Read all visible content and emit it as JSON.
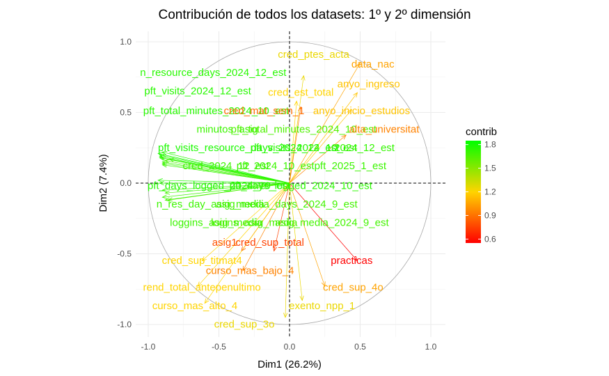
{
  "chart_data": {
    "type": "pca-variable-correlation-circle",
    "title": "Contribución de todos los datasets: 1º y 2º dimensión",
    "xlabel": "Dim1 (26.2%)",
    "ylabel": "Dim2 (7.4%)",
    "xlim": [
      -1.05,
      1.05
    ],
    "ylim": [
      -1.07,
      1.07
    ],
    "x_ticks": [
      "-1.0",
      "-0.5",
      "0.0",
      "0.5",
      "1.0"
    ],
    "y_ticks": [
      "-1.0",
      "-0.5",
      "0.0",
      "0.5",
      "1.0"
    ],
    "grid": true,
    "unit_circle": true,
    "reference_lines": "dashed at x=0 and y=0",
    "color_scale": {
      "title": "contrib",
      "min": 0.55,
      "max": 1.85,
      "colors": [
        "#ff0000",
        "#ffd400",
        "#00ff00"
      ],
      "ticks": [
        "1.8",
        "1.5",
        "1.2",
        "0.9",
        "0.6"
      ],
      "tick_values": [
        1.8,
        1.5,
        1.2,
        0.9,
        0.6
      ],
      "legend_position": "right"
    },
    "variables": [
      {
        "label": "cred_ptes_acta",
        "x": 0.1,
        "y": 0.76,
        "contrib": 1.25,
        "lx": 0.17,
        "ly": 0.91
      },
      {
        "label": "data_nac",
        "x": 0.5,
        "y": 0.85,
        "contrib": 1.05,
        "lx": 0.59,
        "ly": 0.84
      },
      {
        "label": "n_resource_days_2024_12_est",
        "x": -0.9,
        "y": 0.22,
        "contrib": 1.75,
        "lx": -0.54,
        "ly": 0.78
      },
      {
        "label": "anyo_ingreso",
        "x": 0.48,
        "y": 0.64,
        "contrib": 1.15,
        "lx": 0.56,
        "ly": 0.7
      },
      {
        "label": "pft_visits_2024_12_est",
        "x": -0.92,
        "y": 0.2,
        "contrib": 1.75,
        "lx": -0.65,
        "ly": 0.65
      },
      {
        "label": "cred_est_total",
        "x": 0.05,
        "y": 0.58,
        "contrib": 1.2,
        "lx": 0.08,
        "ly": 0.64
      },
      {
        "label": "pft_total_minutes_2024_10_est",
        "x": -0.92,
        "y": 0.18,
        "contrib": 1.75,
        "lx": -0.52,
        "ly": 0.51
      },
      {
        "label": "cred_mat_sem_1",
        "x": 0.08,
        "y": 0.54,
        "contrib": 0.88,
        "lx": -0.18,
        "ly": 0.51
      },
      {
        "label": "anyo_inicio_estudios",
        "x": 0.44,
        "y": 0.52,
        "contrib": 1.15,
        "lx": 0.51,
        "ly": 0.51
      },
      {
        "label": "minutos_asig",
        "x": -0.85,
        "y": 0.17,
        "contrib": 1.7,
        "lx": -0.44,
        "ly": 0.38
      },
      {
        "label": "pft_total_minutes_2024_10_est",
        "x": -0.88,
        "y": 0.16,
        "contrib": 1.65,
        "lx": 0.1,
        "ly": 0.38
      },
      {
        "label": "alta_universitat",
        "x": 0.4,
        "y": 0.34,
        "contrib": 0.95,
        "lx": 0.67,
        "ly": 0.38
      },
      {
        "label": "pft_visits_resource_days_2024_12_est",
        "x": -0.93,
        "y": 0.21,
        "contrib": 1.78,
        "lx": -0.29,
        "ly": 0.25
      },
      {
        "label": "pft_visits_2024_10_est",
        "x": -0.92,
        "y": 0.19,
        "contrib": 1.75,
        "lx": 0.1,
        "ly": 0.25
      },
      {
        "label": "2024_12_est",
        "x": -0.91,
        "y": 0.18,
        "contrib": 1.72,
        "lx": 0.53,
        "ly": 0.25
      },
      {
        "label": "cred_2024_12_est",
        "x": -0.9,
        "y": 0.15,
        "contrib": 1.7,
        "lx": -0.45,
        "ly": 0.12
      },
      {
        "label": "pft_2024_10_est",
        "x": -0.9,
        "y": 0.14,
        "contrib": 1.7,
        "lx": -0.1,
        "ly": 0.12
      },
      {
        "label": "pft_2025_1_est",
        "x": -0.9,
        "y": 0.13,
        "contrib": 1.7,
        "lx": 0.43,
        "ly": 0.12
      },
      {
        "label": "pft_days_logged_2024_10_est",
        "x": -0.93,
        "y": 0.02,
        "contrib": 1.76,
        "lx": -0.5,
        "ly": -0.02
      },
      {
        "label": "pft_days_logged_2024_10_est",
        "x": -0.92,
        "y": 0.0,
        "contrib": 1.74,
        "lx": 0.08,
        "ly": -0.02
      },
      {
        "label": "n_res_day_asig_media",
        "x": -0.9,
        "y": -0.05,
        "contrib": 1.7,
        "lx": -0.56,
        "ly": -0.15
      },
      {
        "label": "asig_media_days_2024_9_est",
        "x": -0.88,
        "y": -0.07,
        "contrib": 1.68,
        "lx": -0.02,
        "ly": -0.15
      },
      {
        "label": "loggins_asig_media",
        "x": -0.9,
        "y": -0.1,
        "contrib": 1.7,
        "lx": -0.52,
        "ly": -0.28
      },
      {
        "label": "asig_media_2024_9_est",
        "x": -0.88,
        "y": -0.12,
        "contrib": 1.68,
        "lx": 0.3,
        "ly": -0.28
      },
      {
        "label": "logins_asig_media",
        "x": -0.86,
        "y": -0.12,
        "contrib": 1.66,
        "lx": -0.25,
        "ly": -0.28
      },
      {
        "label": "asig1",
        "x": -0.34,
        "y": -0.48,
        "contrib": 0.8,
        "lx": -0.46,
        "ly": -0.42
      },
      {
        "label": "cred_sup_total",
        "x": -0.11,
        "y": -0.48,
        "contrib": 0.75,
        "lx": -0.14,
        "ly": -0.42
      },
      {
        "label": "practicas",
        "x": 0.48,
        "y": -0.55,
        "contrib": 0.55,
        "lx": 0.44,
        "ly": -0.55
      },
      {
        "label": "cred_sup_titmat4",
        "x": -0.62,
        "y": -0.55,
        "contrib": 1.2,
        "lx": -0.62,
        "ly": -0.55
      },
      {
        "label": "curso_mas_bajo_4",
        "x": -0.33,
        "y": -0.62,
        "contrib": 0.95,
        "lx": -0.28,
        "ly": -0.62
      },
      {
        "label": "rend_total_antepenultimo",
        "x": -0.65,
        "y": -0.73,
        "contrib": 1.2,
        "lx": -0.62,
        "ly": -0.74
      },
      {
        "label": "cred_sup_4o",
        "x": 0.25,
        "y": -0.73,
        "contrib": 1.05,
        "lx": 0.45,
        "ly": -0.74
      },
      {
        "label": "curso_mas_alto_4",
        "x": -0.6,
        "y": -0.85,
        "contrib": 1.2,
        "lx": -0.67,
        "ly": -0.87
      },
      {
        "label": "exento_npp_1",
        "x": 0.09,
        "y": -0.83,
        "contrib": 1.25,
        "lx": 0.23,
        "ly": -0.87
      },
      {
        "label": "cred_sup_3o",
        "x": -0.03,
        "y": -0.95,
        "contrib": 1.25,
        "lx": -0.32,
        "ly": -1.0
      }
    ]
  }
}
